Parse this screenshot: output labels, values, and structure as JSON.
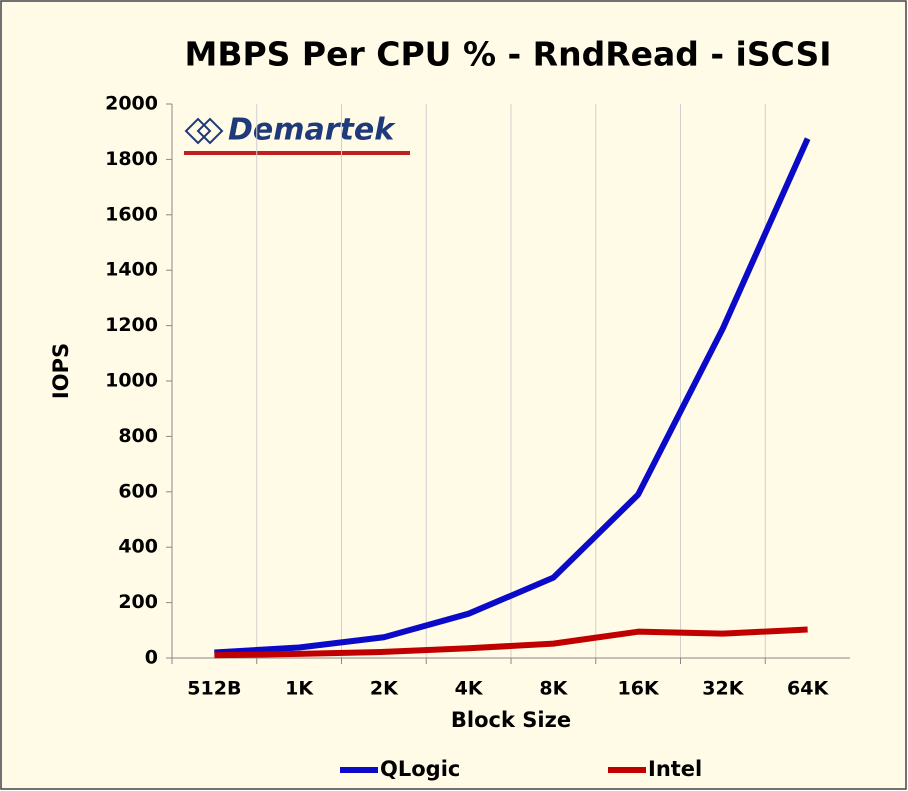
{
  "chart_data": {
    "type": "line",
    "title": "MBPS Per CPU % - RndRead - iSCSI",
    "logo": "Demartek",
    "xlabel": "Block Size",
    "ylabel": "IOPS",
    "categories": [
      "512B",
      "1K",
      "2K",
      "4K",
      "8K",
      "16K",
      "32K",
      "64K"
    ],
    "series": [
      {
        "name": "QLogic",
        "color": "#0a0ac8",
        "values": [
          20,
          38,
          75,
          160,
          290,
          590,
          1190,
          1875
        ]
      },
      {
        "name": "Intel",
        "color": "#c00000",
        "values": [
          10,
          15,
          22,
          35,
          52,
          95,
          88,
          103
        ]
      }
    ],
    "ylim": [
      0,
      2000
    ],
    "yticks": [
      0,
      200,
      400,
      600,
      800,
      1000,
      1200,
      1400,
      1600,
      1800,
      2000
    ],
    "xgrid": true,
    "legend": "bottom"
  }
}
